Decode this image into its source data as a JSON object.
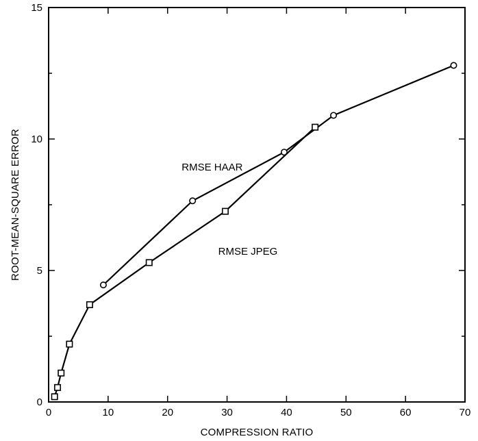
{
  "chart_data": {
    "type": "line",
    "xlabel": "COMPRESSION RATIO",
    "ylabel": "ROOT-MEAN-SQUARE ERROR",
    "xlim": [
      0,
      70
    ],
    "ylim": [
      0,
      15
    ],
    "x_ticks": [
      0,
      10,
      20,
      30,
      40,
      50,
      60,
      70
    ],
    "y_ticks": [
      0,
      5,
      10,
      15
    ],
    "grid": false,
    "series": [
      {
        "name": "RMSE HAAR",
        "marker": "circle",
        "x": [
          9.2,
          24.2,
          39.6,
          47.9,
          68.1
        ],
        "y": [
          4.45,
          7.65,
          9.5,
          10.9,
          12.8
        ]
      },
      {
        "name": "RMSE JPEG",
        "marker": "square",
        "x": [
          1.0,
          1.5,
          2.1,
          3.5,
          6.9,
          16.9,
          29.7,
          44.8
        ],
        "y": [
          0.2,
          0.55,
          1.1,
          2.2,
          3.7,
          5.3,
          7.25,
          10.45
        ]
      }
    ],
    "annotations": [
      {
        "text": "RMSE HAAR",
        "x": 27.5,
        "y": 8.8
      },
      {
        "text": "RMSE JPEG",
        "x": 33.5,
        "y": 5.6
      }
    ]
  }
}
